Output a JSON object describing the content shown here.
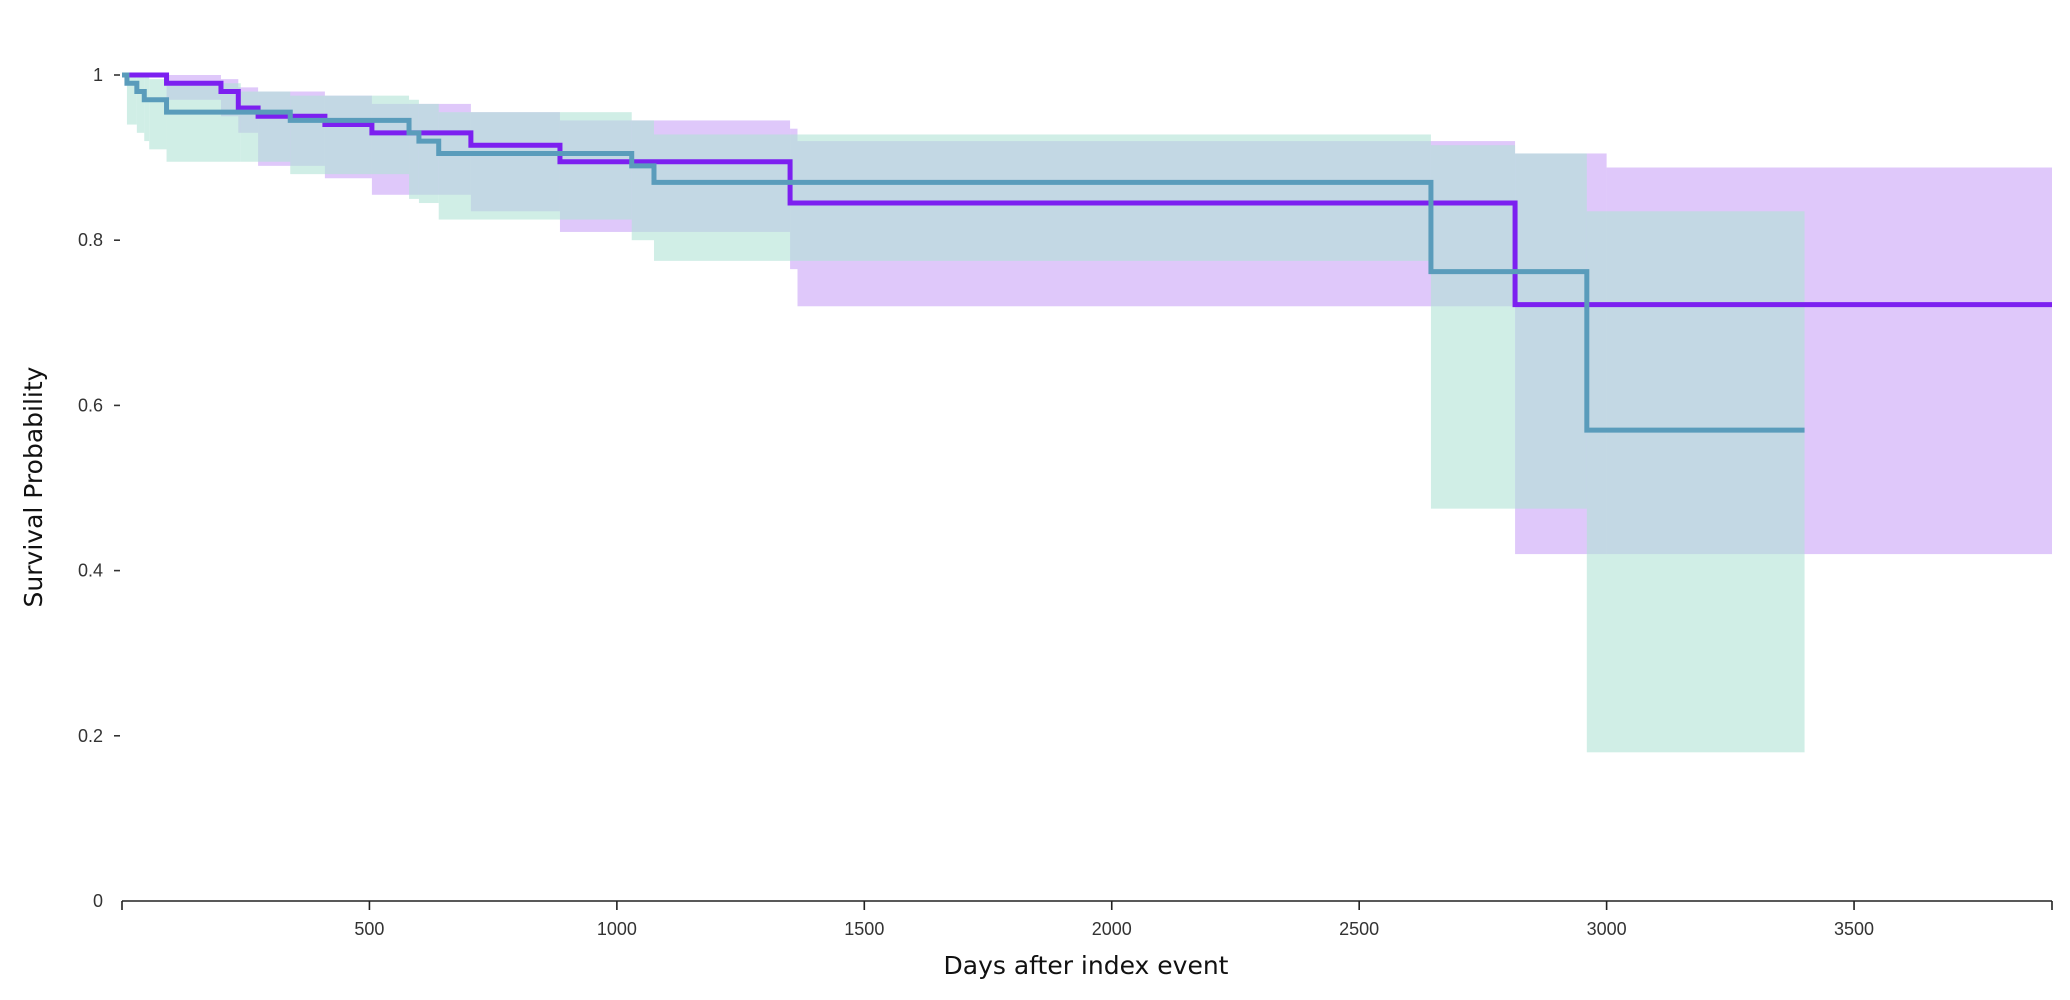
{
  "chart_data": {
    "type": "line",
    "subtype": "kaplan-meier step",
    "xlabel": "Days after index event",
    "ylabel": "Survival Probability",
    "xlim": [
      0,
      3900
    ],
    "ylim": [
      0,
      1
    ],
    "x_ticks": [
      500,
      1000,
      1500,
      2000,
      2500,
      3000,
      3500
    ],
    "x_tick_labels": [
      "500",
      "1000",
      "1500",
      "2000",
      "2500",
      "3000",
      "3500"
    ],
    "y_ticks": [
      0,
      0.2,
      0.4,
      0.6,
      0.8,
      1
    ],
    "y_tick_labels": [
      "0",
      "0.2",
      "0.4",
      "0.6",
      "0.8",
      "1"
    ],
    "grid": false,
    "legend": "none",
    "series": [
      {
        "color": "#7c20f0",
        "band_color": "#c9a4f7",
        "steps": [
          {
            "x": 0,
            "y": 1.0,
            "lo": 1.0,
            "hi": 1.0
          },
          {
            "x": 90,
            "y": 0.99,
            "lo": 0.97,
            "hi": 1.0
          },
          {
            "x": 200,
            "y": 0.98,
            "lo": 0.95,
            "hi": 0.995
          },
          {
            "x": 235,
            "y": 0.96,
            "lo": 0.93,
            "hi": 0.985
          },
          {
            "x": 275,
            "y": 0.95,
            "lo": 0.89,
            "hi": 0.98
          },
          {
            "x": 410,
            "y": 0.94,
            "lo": 0.875,
            "hi": 0.975
          },
          {
            "x": 505,
            "y": 0.93,
            "lo": 0.855,
            "hi": 0.965
          },
          {
            "x": 705,
            "y": 0.915,
            "lo": 0.835,
            "hi": 0.955
          },
          {
            "x": 885,
            "y": 0.895,
            "lo": 0.81,
            "hi": 0.945
          },
          {
            "x": 1350,
            "y": 0.845,
            "lo": 0.765,
            "hi": 0.935
          },
          {
            "x": 1365,
            "y": 0.845,
            "lo": 0.72,
            "hi": 0.92
          },
          {
            "x": 2815,
            "y": 0.722,
            "lo": 0.42,
            "hi": 0.905
          },
          {
            "x": 3000,
            "y": 0.722,
            "lo": 0.42,
            "hi": 0.888
          },
          {
            "x": 3900,
            "y": 0.722,
            "lo": 0.42,
            "hi": 0.888
          }
        ]
      },
      {
        "color": "#3ec4a0",
        "line_color": "#5a9cbb",
        "band_color": "#b0e2d6",
        "steps": [
          {
            "x": 0,
            "y": 1.0,
            "lo": 1.0,
            "hi": 1.0
          },
          {
            "x": 10,
            "y": 0.99,
            "lo": 0.94,
            "hi": 1.0
          },
          {
            "x": 30,
            "y": 0.98,
            "lo": 0.93,
            "hi": 1.0
          },
          {
            "x": 45,
            "y": 0.97,
            "lo": 0.92,
            "hi": 1.0
          },
          {
            "x": 55,
            "y": 0.97,
            "lo": 0.91,
            "hi": 0.995
          },
          {
            "x": 90,
            "y": 0.955,
            "lo": 0.895,
            "hi": 0.99
          },
          {
            "x": 240,
            "y": 0.955,
            "lo": 0.895,
            "hi": 0.98
          },
          {
            "x": 340,
            "y": 0.945,
            "lo": 0.88,
            "hi": 0.975
          },
          {
            "x": 580,
            "y": 0.93,
            "lo": 0.85,
            "hi": 0.97
          },
          {
            "x": 600,
            "y": 0.92,
            "lo": 0.845,
            "hi": 0.965
          },
          {
            "x": 640,
            "y": 0.905,
            "lo": 0.825,
            "hi": 0.955
          },
          {
            "x": 1030,
            "y": 0.89,
            "lo": 0.8,
            "hi": 0.945
          },
          {
            "x": 1075,
            "y": 0.87,
            "lo": 0.775,
            "hi": 0.928
          },
          {
            "x": 2645,
            "y": 0.762,
            "lo": 0.475,
            "hi": 0.915
          },
          {
            "x": 2815,
            "y": 0.762,
            "lo": 0.475,
            "hi": 0.905
          },
          {
            "x": 2960,
            "y": 0.57,
            "lo": 0.18,
            "hi": 0.835
          },
          {
            "x": 3400,
            "y": 0.57,
            "lo": 0.18,
            "hi": 0.835
          }
        ]
      }
    ]
  }
}
